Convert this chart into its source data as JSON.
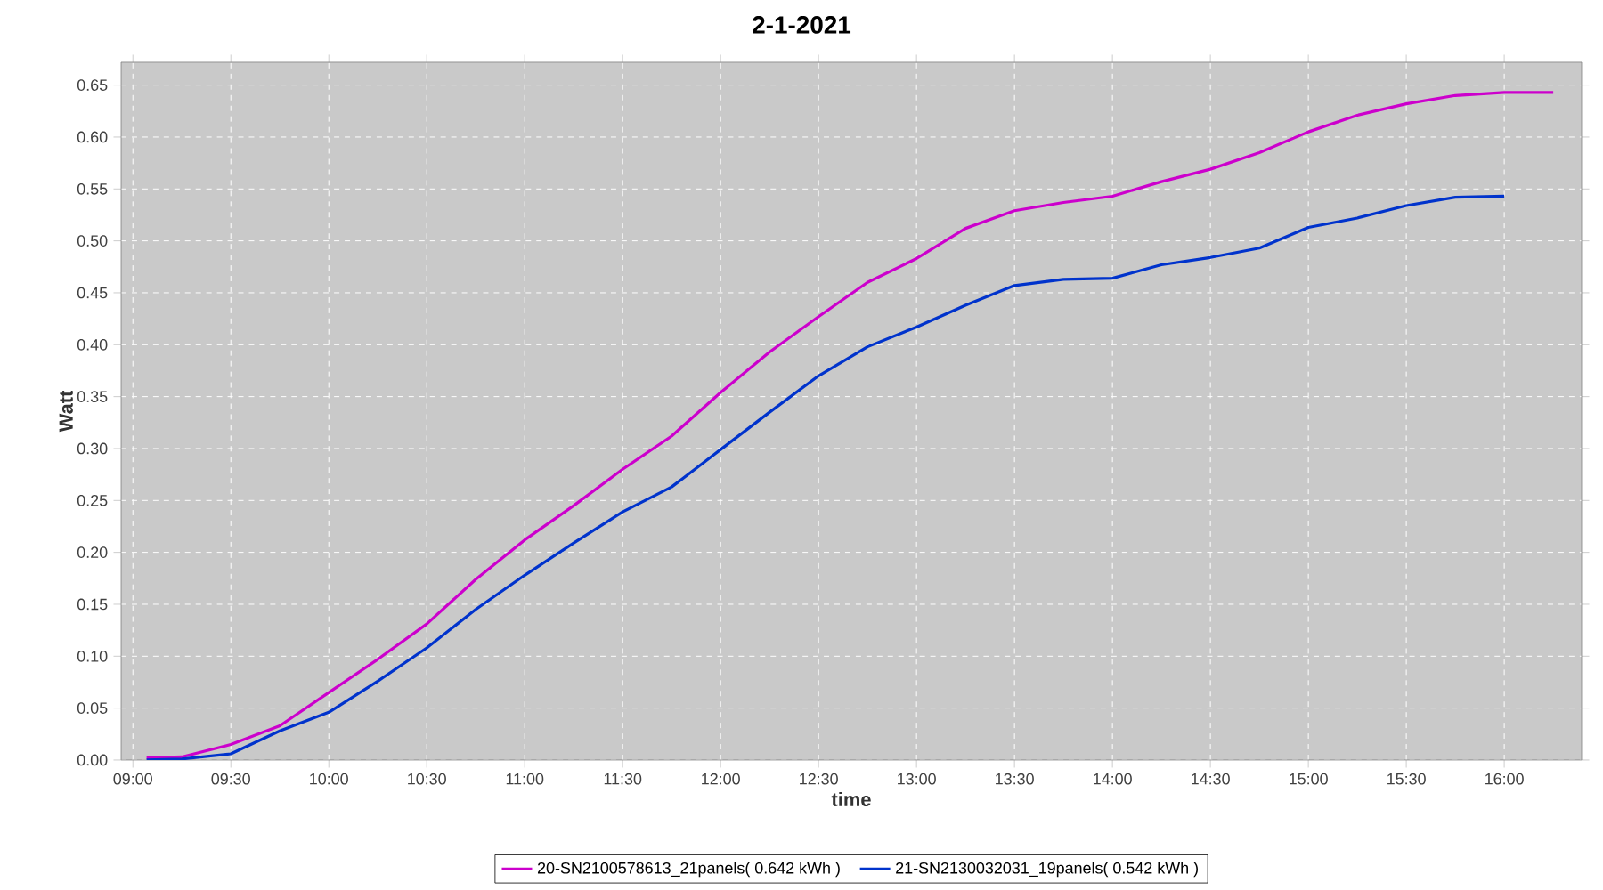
{
  "chart_data": {
    "type": "line",
    "title": "2-1-2021",
    "xlabel": "time",
    "ylabel": "Watt",
    "xlim": [
      8.94,
      16.395
    ],
    "ylim": [
      0,
      0.672
    ],
    "xticks": [
      {
        "value": 9,
        "label": "09:00"
      },
      {
        "value": 9.5,
        "label": "09:30"
      },
      {
        "value": 10,
        "label": "10:00"
      },
      {
        "value": 10.5,
        "label": "10:30"
      },
      {
        "value": 11,
        "label": "11:00"
      },
      {
        "value": 11.5,
        "label": "11:30"
      },
      {
        "value": 12,
        "label": "12:00"
      },
      {
        "value": 12.5,
        "label": "12:30"
      },
      {
        "value": 13,
        "label": "13:00"
      },
      {
        "value": 13.5,
        "label": "13:30"
      },
      {
        "value": 14,
        "label": "14:00"
      },
      {
        "value": 14.5,
        "label": "14:30"
      },
      {
        "value": 15,
        "label": "15:00"
      },
      {
        "value": 15.5,
        "label": "15:30"
      },
      {
        "value": 16,
        "label": "16:00"
      }
    ],
    "yticks": [
      {
        "value": 0,
        "label": "0.00"
      },
      {
        "value": 0.05,
        "label": "0.05"
      },
      {
        "value": 0.1,
        "label": "0.10"
      },
      {
        "value": 0.15,
        "label": "0.15"
      },
      {
        "value": 0.2,
        "label": "0.20"
      },
      {
        "value": 0.25,
        "label": "0.25"
      },
      {
        "value": 0.3,
        "label": "0.30"
      },
      {
        "value": 0.35,
        "label": "0.35"
      },
      {
        "value": 0.4,
        "label": "0.40"
      },
      {
        "value": 0.45,
        "label": "0.45"
      },
      {
        "value": 0.5,
        "label": "0.50"
      },
      {
        "value": 0.55,
        "label": "0.55"
      },
      {
        "value": 0.6,
        "label": "0.60"
      },
      {
        "value": 0.65,
        "label": "0.65"
      }
    ],
    "grid": true,
    "legend": "bottom",
    "marker": "none",
    "line_style": "solid",
    "series": [
      {
        "name": "20-SN2100578613_21panels( 0.642 kWh )",
        "color": "#cc00cc",
        "x": [
          9.07,
          9.25,
          9.5,
          9.75,
          10,
          10.25,
          10.5,
          10.75,
          11,
          11.25,
          11.5,
          11.75,
          12,
          12.25,
          12.5,
          12.75,
          13,
          13.25,
          13.5,
          13.75,
          14,
          14.25,
          14.5,
          14.75,
          15,
          15.25,
          15.5,
          15.75,
          16,
          16.25
        ],
        "values": [
          0.002,
          0.003,
          0.015,
          0.033,
          0.065,
          0.097,
          0.131,
          0.174,
          0.212,
          0.245,
          0.28,
          0.312,
          0.354,
          0.393,
          0.427,
          0.46,
          0.483,
          0.512,
          0.529,
          0.537,
          0.543,
          0.557,
          0.569,
          0.585,
          0.605,
          0.621,
          0.632,
          0.64,
          0.643,
          0.643
        ]
      },
      {
        "name": "21-SN2130032031_19panels( 0.542 kWh )",
        "color": "#0033cc",
        "x": [
          9.07,
          9.25,
          9.5,
          9.75,
          10,
          10.25,
          10.5,
          10.75,
          11,
          11.25,
          11.5,
          11.75,
          12,
          12.25,
          12.5,
          12.75,
          13,
          13.25,
          13.5,
          13.75,
          14,
          14.25,
          14.5,
          14.75,
          15,
          15.25,
          15.5,
          15.75,
          16
        ],
        "values": [
          0.0,
          0.001,
          0.006,
          0.028,
          0.046,
          0.076,
          0.108,
          0.145,
          0.178,
          0.209,
          0.239,
          0.263,
          0.299,
          0.335,
          0.37,
          0.398,
          0.417,
          0.438,
          0.457,
          0.463,
          0.464,
          0.477,
          0.484,
          0.493,
          0.513,
          0.522,
          0.534,
          0.542,
          0.543
        ]
      }
    ]
  }
}
